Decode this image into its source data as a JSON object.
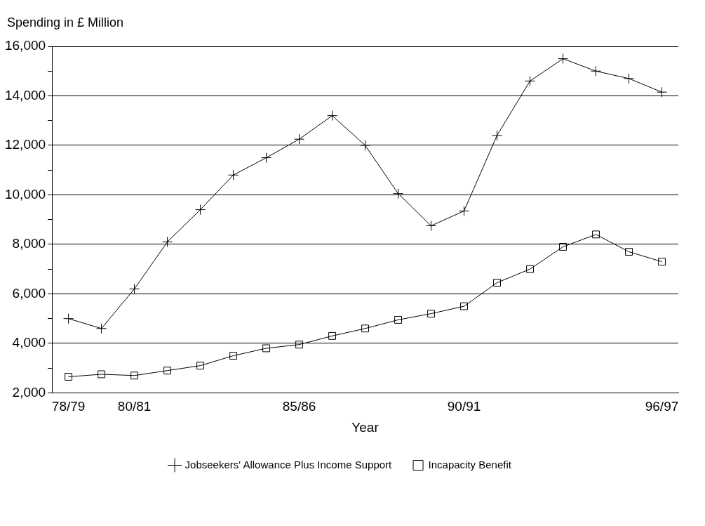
{
  "chart_data": {
    "type": "line",
    "ylabel": "Spending in £ Million",
    "xlabel": "Year",
    "categories": [
      "78/79",
      null,
      "80/81",
      null,
      null,
      null,
      null,
      "85/86",
      null,
      null,
      null,
      null,
      "90/91",
      null,
      null,
      null,
      null,
      null,
      "96/97"
    ],
    "series": [
      {
        "name": "Jobseekers' Allowance Plus Income Support",
        "color": "#000000",
        "marker": "cross",
        "values": [
          5000,
          4600,
          6200,
          8100,
          9400,
          10800,
          11500,
          12250,
          13200,
          12000,
          10050,
          8750,
          9350,
          12400,
          14600,
          15500,
          15000,
          14700,
          14150
        ]
      },
      {
        "name": "Incapacity Benefit",
        "color": "#000000",
        "marker": "square",
        "values": [
          2650,
          2750,
          2700,
          2900,
          3100,
          3500,
          3800,
          3950,
          4300,
          4600,
          4950,
          5200,
          5500,
          6450,
          7000,
          7900,
          8400,
          7700,
          7300
        ]
      }
    ],
    "ylim": [
      2000,
      16000
    ],
    "yticks": [
      {
        "value": 2000,
        "label": "2,000"
      },
      {
        "value": 3000,
        "label": null
      },
      {
        "value": 4000,
        "label": "4,000"
      },
      {
        "value": 5000,
        "label": null
      },
      {
        "value": 6000,
        "label": "6,000"
      },
      {
        "value": 7000,
        "label": null
      },
      {
        "value": 8000,
        "label": "8,000"
      },
      {
        "value": 9000,
        "label": null
      },
      {
        "value": 10000,
        "label": "10,000"
      },
      {
        "value": 11000,
        "label": null
      },
      {
        "value": 12000,
        "label": "12,000"
      },
      {
        "value": 13000,
        "label": null
      },
      {
        "value": 14000,
        "label": "14,000"
      },
      {
        "value": 15000,
        "label": null
      },
      {
        "value": 16000,
        "label": "16,000"
      }
    ],
    "grid": "y",
    "legend": "bottom",
    "line_style": "solid"
  }
}
